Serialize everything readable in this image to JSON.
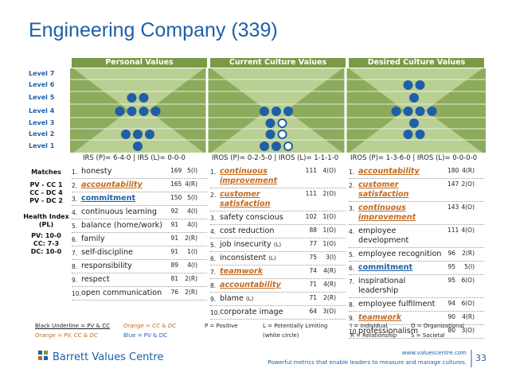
{
  "header": {
    "title": "Engineering Company (339)"
  },
  "levels": [
    "Level 7",
    "Level 6",
    "Level 5",
    "Level 4",
    "Level 3",
    "Level 2",
    "Level 1"
  ],
  "side": {
    "matches_title": "Matches",
    "matches": [
      "PV - CC 1",
      "CC - DC 4",
      "PV - DC 2"
    ],
    "health_title": "Health Index (PL)",
    "health": [
      "PV: 10-0",
      "CC: 7-3",
      "DC: 10-0"
    ]
  },
  "columns": [
    {
      "heading": "Personal Values",
      "index": "IRS (P)= 6-4-0 | IRS (L)= 0-0-0",
      "values": [
        {
          "rank": "1.",
          "name": "honesty",
          "votes": 169,
          "level": "5(I)"
        },
        {
          "rank": "2.",
          "name": "accountability",
          "votes": 165,
          "level": "4(R)",
          "style": "orange"
        },
        {
          "rank": "3.",
          "name": "commitment",
          "votes": 150,
          "level": "5(I)",
          "style": "blue"
        },
        {
          "rank": "4.",
          "name": "continuous learning",
          "votes": 92,
          "level": "4(I)"
        },
        {
          "rank": "5.",
          "name": "balance (home/work)",
          "votes": 91,
          "level": "4(I)"
        },
        {
          "rank": "6.",
          "name": "family",
          "votes": 91,
          "level": "2(R)"
        },
        {
          "rank": "7.",
          "name": "self-discipline",
          "votes": 91,
          "level": "1(I)"
        },
        {
          "rank": "8.",
          "name": "responsibility",
          "votes": 89,
          "level": "4(I)"
        },
        {
          "rank": "9.",
          "name": "respect",
          "votes": 81,
          "level": "2(R)"
        },
        {
          "rank": "10.",
          "name": "open communication",
          "votes": 76,
          "level": "2(R)"
        }
      ]
    },
    {
      "heading": "Current Culture Values",
      "index": "IROS (P)= 0-2-5-0 | IROS (L)= 1-1-1-0",
      "values": [
        {
          "rank": "1.",
          "name": "continuous improvement",
          "votes": 111,
          "level": "4(O)",
          "style": "orange"
        },
        {
          "rank": "2.",
          "name": "customer satisfaction",
          "votes": 111,
          "level": "2(O)",
          "style": "orange"
        },
        {
          "rank": "3.",
          "name": "safety conscious",
          "votes": 102,
          "level": "1(O)"
        },
        {
          "rank": "4.",
          "name": "cost reduction",
          "votes": 88,
          "level": "1(O)"
        },
        {
          "rank": "5.",
          "name": "job insecurity",
          "tag": "(L)",
          "votes": 77,
          "level": "1(O)"
        },
        {
          "rank": "6.",
          "name": "inconsistent",
          "tag": "(L)",
          "votes": 75,
          "level": "3(I)"
        },
        {
          "rank": "7.",
          "name": "teamwork",
          "votes": 74,
          "level": "4(R)",
          "style": "orange"
        },
        {
          "rank": "8.",
          "name": "accountability",
          "votes": 71,
          "level": "4(R)",
          "style": "orange"
        },
        {
          "rank": "9.",
          "name": "blame",
          "tag": "(L)",
          "votes": 71,
          "level": "2(R)"
        },
        {
          "rank": "10.",
          "name": "corporate image",
          "votes": 64,
          "level": "3(O)"
        }
      ]
    },
    {
      "heading": "Desired Culture Values",
      "index": "IROS (P)= 1-3-6-0 | IROS (L)= 0-0-0-0",
      "values": [
        {
          "rank": "1.",
          "name": "accountability",
          "votes": 180,
          "level": "4(R)",
          "style": "orange"
        },
        {
          "rank": "2.",
          "name": "customer satisfaction",
          "votes": 147,
          "level": "2(O)",
          "style": "orange"
        },
        {
          "rank": "3.",
          "name": "continuous improvement",
          "votes": 143,
          "level": "4(O)",
          "style": "orange"
        },
        {
          "rank": "4.",
          "name": "employee development",
          "votes": 111,
          "level": "4(O)"
        },
        {
          "rank": "5.",
          "name": "employee recognition",
          "votes": 96,
          "level": "2(R)"
        },
        {
          "rank": "6.",
          "name": "commitment",
          "votes": 95,
          "level": "5(I)",
          "style": "blue"
        },
        {
          "rank": "7.",
          "name": "inspirational leadership",
          "votes": 95,
          "level": "6(O)"
        },
        {
          "rank": "8.",
          "name": "employee fulfilment",
          "votes": 94,
          "level": "6(O)"
        },
        {
          "rank": "9.",
          "name": "teamwork",
          "votes": 90,
          "level": "4(R)",
          "style": "orange"
        },
        {
          "rank": "10.",
          "name": "professionalism",
          "votes": 80,
          "level": "3(O)"
        }
      ]
    }
  ],
  "legend": [
    [
      "Black Underline = PV & CC",
      "Orange = CC & DC",
      "P = Positive",
      "L = Potentially Limiting",
      "I = Individual",
      "O = Organizational"
    ],
    [
      "Orange = PV, CC & DC",
      "Blue = PV & DC",
      "(white circle)",
      "R = Relationship",
      "S = Societal"
    ]
  ],
  "footer": {
    "logo": "Barrett Values Centre",
    "url": "www.valuescentre.com",
    "tagline": "Powerful metrics that enable leaders to measure and manage cultures.",
    "page": 33
  }
}
